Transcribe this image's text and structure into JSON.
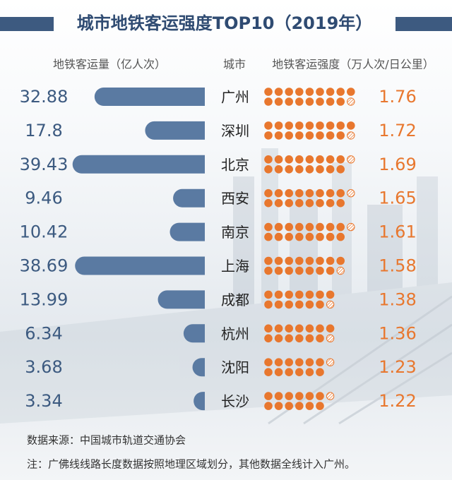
{
  "chart_data": {
    "type": "bar-dot",
    "title": "城市地铁客运强度TOP10（2019年）",
    "category_label": "城市",
    "categories": [
      "广州",
      "深圳",
      "北京",
      "西安",
      "南京",
      "上海",
      "成都",
      "杭州",
      "沈阳",
      "长沙"
    ],
    "series": [
      {
        "name": "地铁客运量（亿人次）",
        "color": "#5a7aa2",
        "values": [
          32.88,
          17.8,
          39.43,
          9.46,
          10.42,
          38.69,
          13.99,
          6.34,
          3.68,
          3.34
        ]
      },
      {
        "name": "地铁客运强度（万人次/日公里）",
        "color": "#e8772e",
        "values": [
          1.76,
          1.72,
          1.69,
          1.65,
          1.61,
          1.58,
          1.38,
          1.36,
          1.23,
          1.22
        ]
      }
    ],
    "source": "数据来源：中国城市轨道交通协会",
    "note": "注：广佛线线路长度数据按照地理区域划分，其他数据全线计入广州。"
  }
}
